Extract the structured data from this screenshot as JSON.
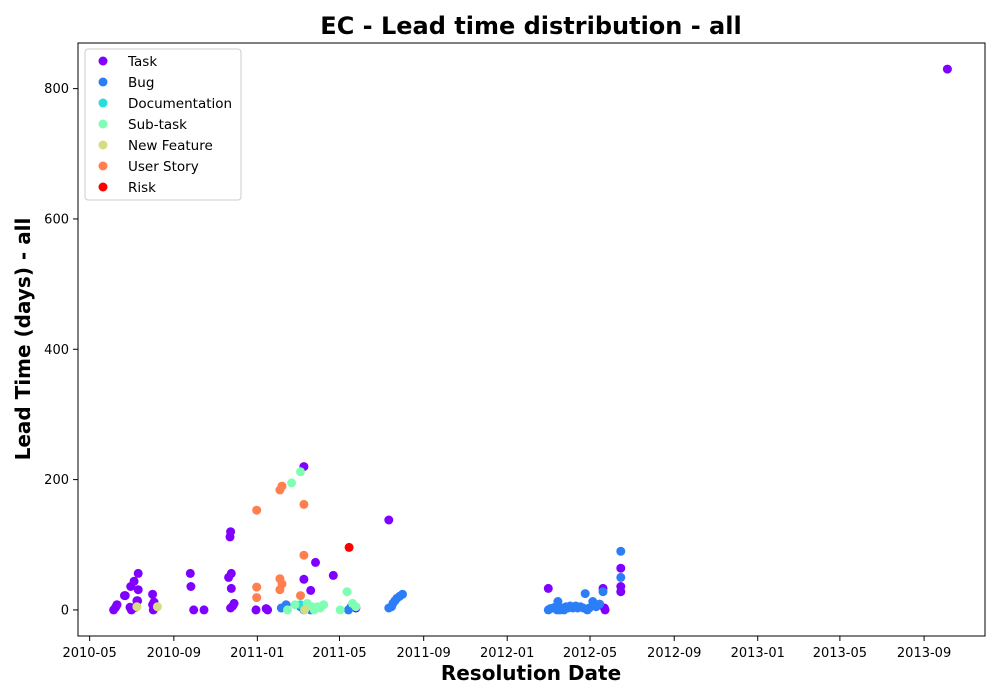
{
  "chart_data": {
    "type": "scatter",
    "title": "EC - Lead time distribution - all",
    "xlabel": "Resolution Date",
    "ylabel": "Lead Time (days) - all",
    "xlim": [
      "2010-04-14",
      "2013-11-29"
    ],
    "ylim": [
      -40,
      870
    ],
    "x_ticks": [
      "2010-05",
      "2010-09",
      "2011-01",
      "2011-05",
      "2011-09",
      "2012-01",
      "2012-05",
      "2012-09",
      "2013-01",
      "2013-05",
      "2013-09"
    ],
    "y_ticks": [
      0,
      200,
      400,
      600,
      800
    ],
    "grid": false,
    "legend_position": "top-left",
    "series": [
      {
        "name": "Task",
        "color": "#8000ff",
        "points": [
          [
            "2010-06-05",
            0
          ],
          [
            "2010-06-08",
            4
          ],
          [
            "2010-06-10",
            8
          ],
          [
            "2010-06-21",
            22
          ],
          [
            "2010-06-22",
            22
          ],
          [
            "2010-06-29",
            4
          ],
          [
            "2010-06-30",
            36
          ],
          [
            "2010-07-01",
            0
          ],
          [
            "2010-07-05",
            44
          ],
          [
            "2010-07-06",
            4
          ],
          [
            "2010-07-07",
            4
          ],
          [
            "2010-07-09",
            14
          ],
          [
            "2010-07-10",
            14
          ],
          [
            "2010-07-11",
            56
          ],
          [
            "2010-07-11",
            31
          ],
          [
            "2010-08-01",
            24
          ],
          [
            "2010-08-01",
            8
          ],
          [
            "2010-08-02",
            0
          ],
          [
            "2010-08-03",
            12
          ],
          [
            "2010-09-25",
            56
          ],
          [
            "2010-09-26",
            36
          ],
          [
            "2010-09-30",
            0
          ],
          [
            "2010-10-15",
            0
          ],
          [
            "2010-11-20",
            50
          ],
          [
            "2010-11-22",
            112
          ],
          [
            "2010-11-23",
            120
          ],
          [
            "2010-11-24",
            56
          ],
          [
            "2010-11-24",
            33
          ],
          [
            "2010-11-23",
            3
          ],
          [
            "2010-11-26",
            6
          ],
          [
            "2010-11-28",
            10
          ],
          [
            "2010-12-30",
            0
          ],
          [
            "2011-01-14",
            2
          ],
          [
            "2011-01-16",
            0
          ],
          [
            "2011-03-10",
            220
          ],
          [
            "2011-03-10",
            47
          ],
          [
            "2011-03-20",
            30
          ],
          [
            "2011-03-27",
            73
          ],
          [
            "2011-04-22",
            53
          ],
          [
            "2011-05-25",
            3
          ],
          [
            "2011-07-12",
            138
          ],
          [
            "2012-03-01",
            33
          ],
          [
            "2012-05-20",
            33
          ],
          [
            "2012-05-22",
            3
          ],
          [
            "2012-05-23",
            0
          ],
          [
            "2012-06-15",
            64
          ],
          [
            "2012-06-15",
            36
          ],
          [
            "2012-06-15",
            28
          ],
          [
            "2013-10-05",
            830
          ]
        ]
      },
      {
        "name": "Bug",
        "color": "#2c7ef7",
        "points": [
          [
            "2011-02-05",
            3
          ],
          [
            "2011-02-12",
            8
          ],
          [
            "2011-03-05",
            5
          ],
          [
            "2011-03-10",
            0
          ],
          [
            "2011-03-15",
            3
          ],
          [
            "2011-03-20",
            0
          ],
          [
            "2011-05-14",
            0
          ],
          [
            "2011-05-18",
            5
          ],
          [
            "2011-07-12",
            3
          ],
          [
            "2011-07-16",
            5
          ],
          [
            "2011-07-18",
            10
          ],
          [
            "2011-07-21",
            14
          ],
          [
            "2011-07-24",
            18
          ],
          [
            "2011-07-28",
            21
          ],
          [
            "2011-08-01",
            24
          ],
          [
            "2012-03-01",
            0
          ],
          [
            "2012-03-04",
            2
          ],
          [
            "2012-03-08",
            3
          ],
          [
            "2012-03-12",
            5
          ],
          [
            "2012-03-14",
            0
          ],
          [
            "2012-03-15",
            13
          ],
          [
            "2012-03-18",
            0
          ],
          [
            "2012-03-21",
            3
          ],
          [
            "2012-03-24",
            0
          ],
          [
            "2012-03-27",
            5
          ],
          [
            "2012-03-30",
            3
          ],
          [
            "2012-04-02",
            6
          ],
          [
            "2012-04-06",
            3
          ],
          [
            "2012-04-10",
            6
          ],
          [
            "2012-04-13",
            3
          ],
          [
            "2012-04-17",
            5
          ],
          [
            "2012-04-21",
            3
          ],
          [
            "2012-04-24",
            25
          ],
          [
            "2012-04-27",
            0
          ],
          [
            "2012-04-30",
            3
          ],
          [
            "2012-05-05",
            13
          ],
          [
            "2012-05-10",
            5
          ],
          [
            "2012-05-15",
            9
          ],
          [
            "2012-05-20",
            28
          ],
          [
            "2012-06-15",
            90
          ],
          [
            "2012-06-15",
            50
          ]
        ]
      },
      {
        "name": "Documentation",
        "color": "#2adddd",
        "points": [
          [
            "2011-03-05",
            8
          ]
        ]
      },
      {
        "name": "Sub-task",
        "color": "#80ffb4",
        "points": [
          [
            "2011-02-20",
            195
          ],
          [
            "2011-03-05",
            212
          ],
          [
            "2011-02-14",
            0
          ],
          [
            "2011-02-25",
            8
          ],
          [
            "2011-03-25",
            0
          ],
          [
            "2011-03-30",
            5
          ],
          [
            "2011-04-03",
            3
          ],
          [
            "2011-04-08",
            8
          ],
          [
            "2011-05-02",
            0
          ],
          [
            "2011-05-12",
            28
          ],
          [
            "2011-05-20",
            10
          ],
          [
            "2011-05-25",
            5
          ],
          [
            "2011-03-15",
            10
          ],
          [
            "2011-03-22",
            5
          ]
        ]
      },
      {
        "name": "New Feature",
        "color": "#d4dd80",
        "points": [
          [
            "2010-07-09",
            5
          ],
          [
            "2010-08-08",
            5
          ],
          [
            "2011-03-11",
            0
          ]
        ]
      },
      {
        "name": "User Story",
        "color": "#ff7f4f",
        "points": [
          [
            "2010-12-31",
            153
          ],
          [
            "2010-12-31",
            35
          ],
          [
            "2010-12-31",
            19
          ],
          [
            "2011-02-03",
            184
          ],
          [
            "2011-02-06",
            190
          ],
          [
            "2011-02-03",
            48
          ],
          [
            "2011-02-06",
            40
          ],
          [
            "2011-02-03",
            31
          ],
          [
            "2011-03-05",
            22
          ],
          [
            "2011-03-10",
            162
          ],
          [
            "2011-03-10",
            84
          ]
        ]
      },
      {
        "name": "Risk",
        "color": "#ff0000",
        "points": [
          [
            "2011-05-15",
            96
          ]
        ]
      }
    ]
  }
}
